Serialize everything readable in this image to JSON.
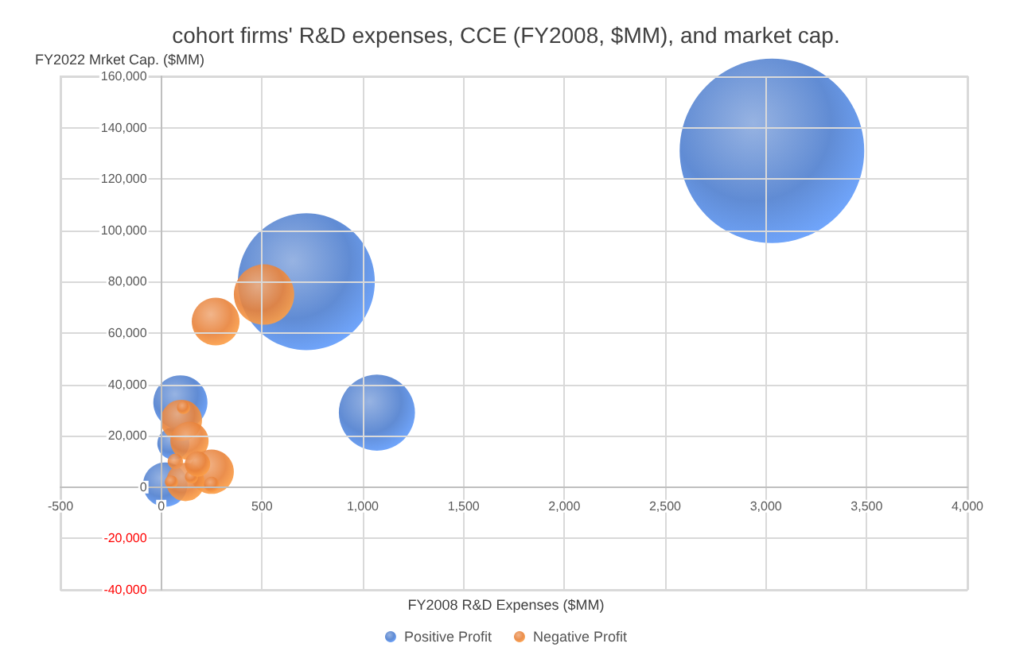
{
  "chart_data": {
    "type": "bubble",
    "title": "cohort firms' R&D expenses, CCE (FY2008, $MM), and market cap.",
    "xlabel": "FY2008 R&D Expenses ($MM)",
    "ylabel": "FY2022 Mrket Cap. ($MM)",
    "xlim": [
      -500,
      4000
    ],
    "xticks": [
      -500,
      0,
      500,
      {
        "value": 1000,
        "label": "1,000"
      },
      {
        "value": 1500,
        "label": "1,500"
      },
      {
        "value": 2000,
        "label": "2,000"
      },
      {
        "value": 2500,
        "label": "2,500"
      },
      {
        "value": 3000,
        "label": "3,000"
      },
      {
        "value": 3500,
        "label": "3,500"
      },
      {
        "value": 4000,
        "label": "4,000"
      }
    ],
    "ylim": [
      -40000,
      160000
    ],
    "yticks": [
      {
        "value": -40000,
        "label": "-40,000"
      },
      {
        "value": -20000,
        "label": "-20,000"
      },
      0,
      {
        "value": 20000,
        "label": "20,000"
      },
      {
        "value": 40000,
        "label": "40,000"
      },
      {
        "value": 60000,
        "label": "60,000"
      },
      {
        "value": 80000,
        "label": "80,000"
      },
      {
        "value": 100000,
        "label": "100,000"
      },
      {
        "value": 120000,
        "label": "120,000"
      },
      {
        "value": 140000,
        "label": "140,000"
      },
      {
        "value": 160000,
        "label": "160,000"
      }
    ],
    "grid": true,
    "legend": "bottom",
    "series": [
      {
        "name": "Positive Profit",
        "color": "#4f7fcf",
        "x": [
          3030,
          720,
          1070,
          95,
          60,
          20
        ],
        "values": [
          131000,
          80000,
          29000,
          33000,
          17000,
          1000
        ],
        "sizes": [
          1,
          0.55,
          0.17,
          0.086,
          0.03,
          0.058
        ]
      },
      {
        "name": "Negative Profit",
        "color": "#e8823a",
        "x": [
          510,
          270,
          100,
          110,
          140,
          250,
          70,
          120,
          50,
          250,
          150,
          180
        ],
        "values": [
          75000,
          64500,
          26000,
          31000,
          18000,
          6000,
          10000,
          2000,
          2000,
          1000,
          4000,
          9000
        ],
        "sizes": [
          0.107,
          0.067,
          0.05,
          0.005,
          0.043,
          0.058,
          0.007,
          0.043,
          0.005,
          0.007,
          0.005,
          0.019
        ]
      }
    ]
  }
}
